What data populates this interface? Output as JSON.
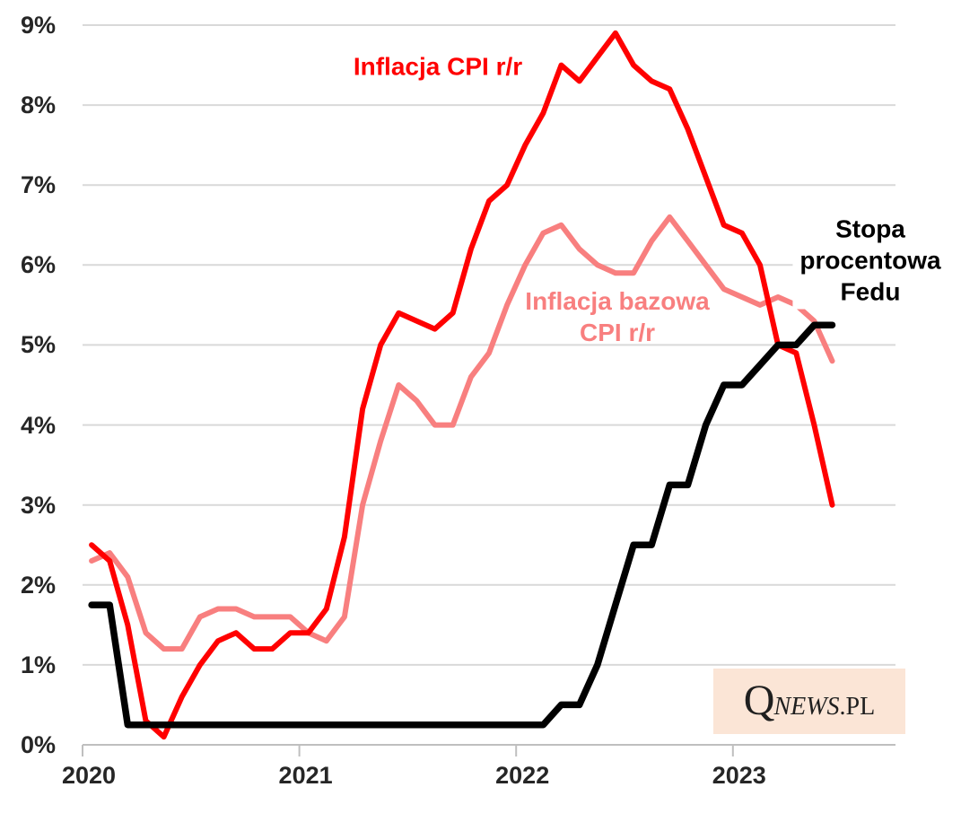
{
  "chart_data": {
    "type": "line",
    "title": "",
    "x_start": "2020-01",
    "x_end": "2023-06",
    "grid": true,
    "legend_position": "inline-labels-on-chart",
    "x_axis": {
      "tick_labels": [
        "2020",
        "2021",
        "2022",
        "2023"
      ],
      "months_shown": 45
    },
    "y_axis": {
      "tick_labels": [
        "0%",
        "1%",
        "2%",
        "3%",
        "4%",
        "5%",
        "6%",
        "7%",
        "8%",
        "9%"
      ],
      "min": 0,
      "max": 9
    },
    "series": [
      {
        "name": "Inflacja CPI r/r",
        "label_lines": [
          "Inflacja CPI r/r"
        ],
        "color": "#ff0000",
        "values": [
          2.5,
          2.3,
          1.5,
          0.3,
          0.1,
          0.6,
          1.0,
          1.3,
          1.4,
          1.2,
          1.2,
          1.4,
          1.4,
          1.7,
          2.6,
          4.2,
          5.0,
          5.4,
          5.3,
          5.2,
          5.4,
          6.2,
          6.8,
          7.0,
          7.5,
          7.9,
          8.5,
          8.3,
          8.6,
          8.9,
          8.5,
          8.3,
          8.2,
          7.7,
          7.1,
          6.5,
          6.4,
          6.0,
          5.0,
          4.9,
          4.0,
          3.0
        ]
      },
      {
        "name": "Inflacja bazowa CPI r/r",
        "label_lines": [
          "Inflacja bazowa",
          "CPI r/r"
        ],
        "color": "#f87f7f",
        "values": [
          2.3,
          2.4,
          2.1,
          1.4,
          1.2,
          1.2,
          1.6,
          1.7,
          1.7,
          1.6,
          1.6,
          1.6,
          1.4,
          1.3,
          1.6,
          3.0,
          3.8,
          4.5,
          4.3,
          4.0,
          4.0,
          4.6,
          4.9,
          5.5,
          6.0,
          6.4,
          6.5,
          6.2,
          6.0,
          5.9,
          5.9,
          6.3,
          6.6,
          6.3,
          6.0,
          5.7,
          5.6,
          5.5,
          5.6,
          5.5,
          5.3,
          4.8
        ]
      },
      {
        "name": "Stopa procentowa Fedu",
        "label_lines": [
          "Stopa",
          "procentowa",
          "Fedu"
        ],
        "color": "#000000",
        "values": [
          1.75,
          1.75,
          0.25,
          0.25,
          0.25,
          0.25,
          0.25,
          0.25,
          0.25,
          0.25,
          0.25,
          0.25,
          0.25,
          0.25,
          0.25,
          0.25,
          0.25,
          0.25,
          0.25,
          0.25,
          0.25,
          0.25,
          0.25,
          0.25,
          0.25,
          0.25,
          0.5,
          0.5,
          1.0,
          1.75,
          2.5,
          2.5,
          3.25,
          3.25,
          4.0,
          4.5,
          4.5,
          4.75,
          5.0,
          5.0,
          5.25,
          5.25
        ]
      }
    ]
  },
  "watermark": {
    "q": "Q",
    "news": "NEWS",
    "pl": ".PL",
    "bg_color": "#fbe5d6"
  }
}
